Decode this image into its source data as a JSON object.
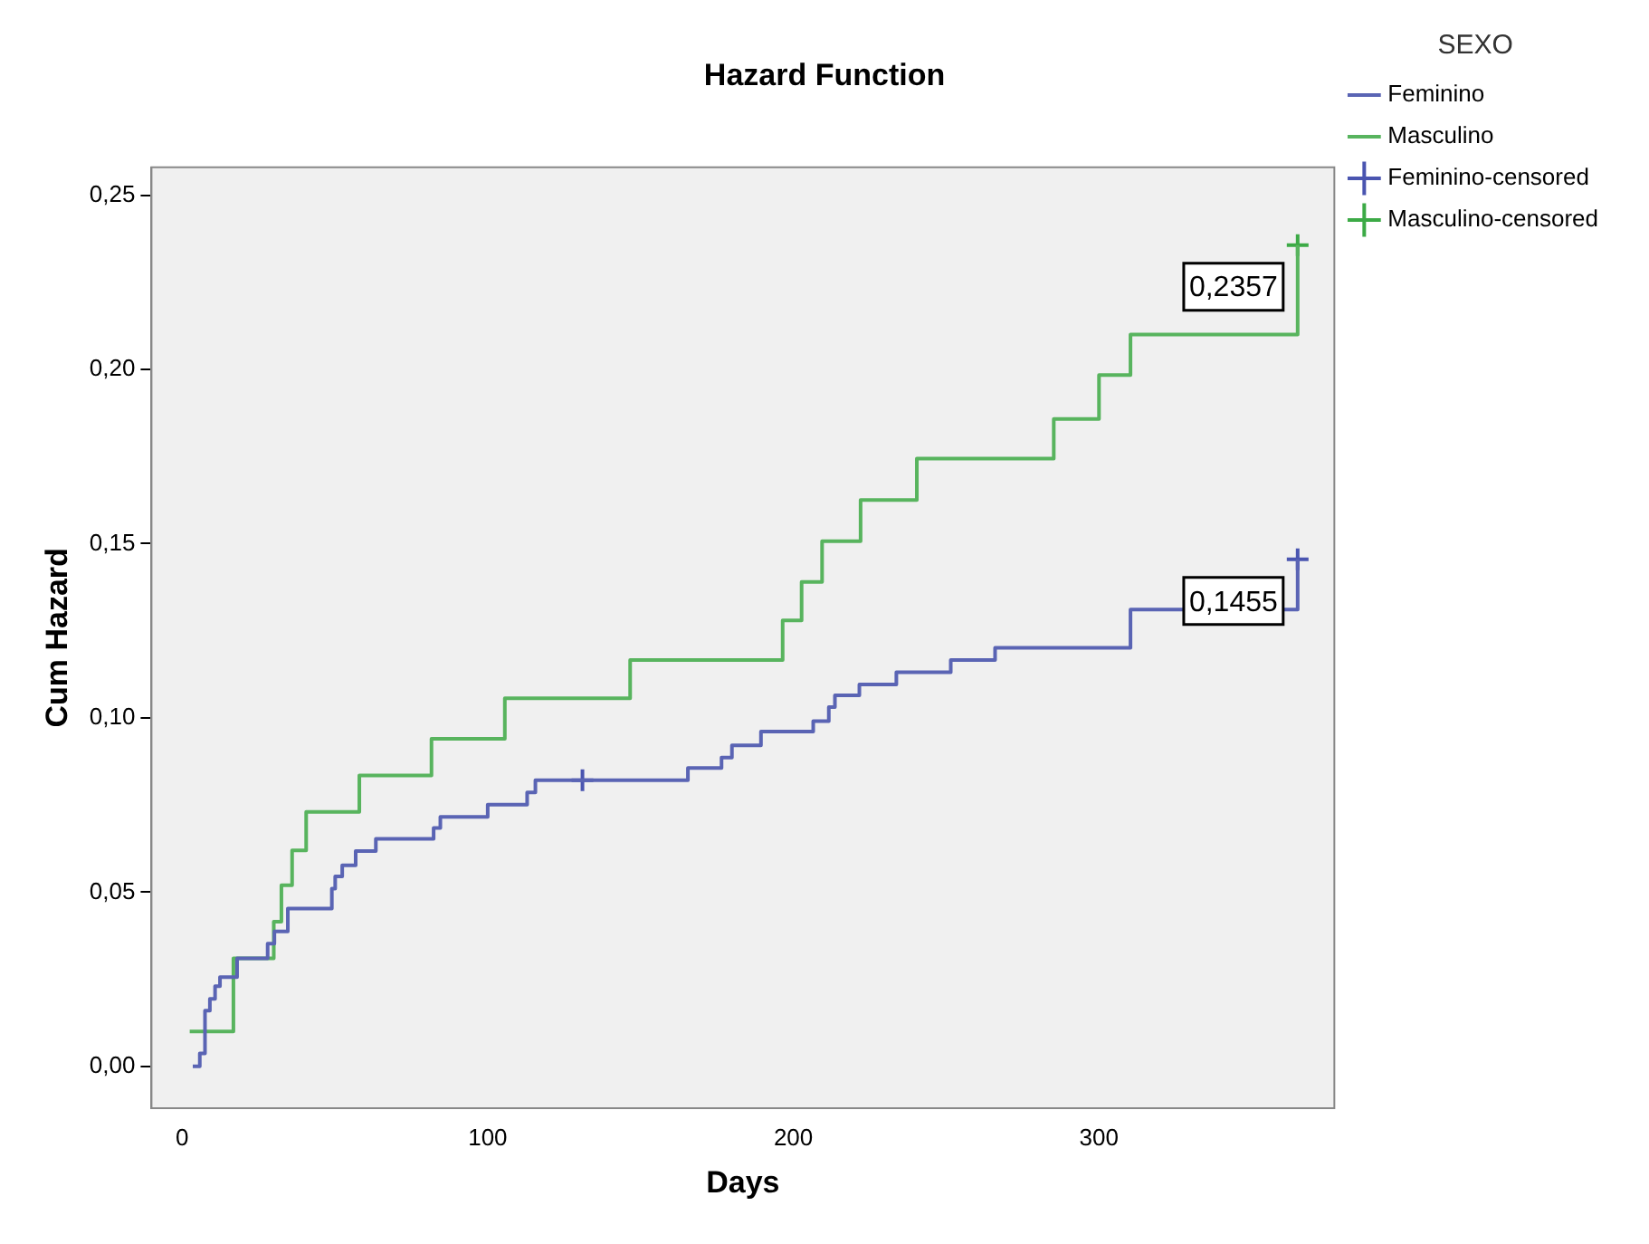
{
  "chart_data": {
    "type": "step",
    "title": "Hazard Function",
    "xlabel": "Days",
    "ylabel": "Cum Hazard",
    "legend_title": "SEXO",
    "legend": "right",
    "xlim": [
      -10,
      377
    ],
    "xticks": [
      0,
      100,
      200,
      300
    ],
    "ylim": [
      -0.012,
      0.258
    ],
    "yticks": [
      {
        "value": 0,
        "label": "0,00"
      },
      {
        "value": 0.05,
        "label": "0,05"
      },
      {
        "value": 0.1,
        "label": "0,10"
      },
      {
        "value": 0.15,
        "label": "0,15"
      },
      {
        "value": 0.2,
        "label": "0,20"
      },
      {
        "value": 0.25,
        "label": "0,25"
      }
    ],
    "series": [
      {
        "name": "Feminino",
        "color": "#5a64b4",
        "x": [
          3.5,
          5.8,
          7.5,
          9.1,
          10.8,
          12.4,
          18,
          28,
          30.2,
          34.6,
          49,
          50.1,
          52.4,
          56.8,
          63.4,
          82.3,
          84.5,
          100,
          112.9,
          115.6,
          165.5,
          176.5,
          179.9,
          189.4,
          206.5,
          211.6,
          213.6,
          221.6,
          233.7,
          251.5,
          266,
          310.3,
          365
        ],
        "values": [
          0,
          0.0037,
          0.016,
          0.0194,
          0.023,
          0.0256,
          0.031,
          0.0352,
          0.0387,
          0.0453,
          0.051,
          0.0545,
          0.0577,
          0.0618,
          0.0653,
          0.0684,
          0.0716,
          0.0751,
          0.0786,
          0.0821,
          0.0856,
          0.0886,
          0.0921,
          0.0961,
          0.0991,
          0.1031,
          0.1065,
          0.1096,
          0.1131,
          0.1166,
          0.1201,
          0.1311,
          0.1455
        ]
      },
      {
        "name": "Masculino",
        "color": "#58b45e",
        "x": [
          2.5,
          16.8,
          30,
          32.5,
          36,
          40.6,
          58,
          81.6,
          105.6,
          146.6,
          196.5,
          202.7,
          209.4,
          222,
          240.4,
          285.2,
          300,
          310.3,
          365
        ],
        "values": [
          0.01,
          0.031,
          0.0415,
          0.052,
          0.062,
          0.073,
          0.0835,
          0.094,
          0.1056,
          0.1166,
          0.128,
          0.139,
          0.1507,
          0.1625,
          0.1744,
          0.1858,
          0.1984,
          0.21,
          0.2357
        ]
      },
      {
        "name": "Feminino-censored",
        "color": "#4a55b0",
        "type": "scatter",
        "marker": "cross",
        "x": [
          131,
          365
        ],
        "values": [
          0.0821,
          0.1455
        ]
      },
      {
        "name": "Masculino-censored",
        "color": "#3caa46",
        "type": "scatter",
        "marker": "cross",
        "x": [
          365
        ],
        "values": [
          0.2357
        ]
      }
    ],
    "annotations": [
      {
        "text": "0,2357",
        "x": 365,
        "y": 0.2357
      },
      {
        "text": "0,1455",
        "x": 365,
        "y": 0.1455
      }
    ]
  }
}
